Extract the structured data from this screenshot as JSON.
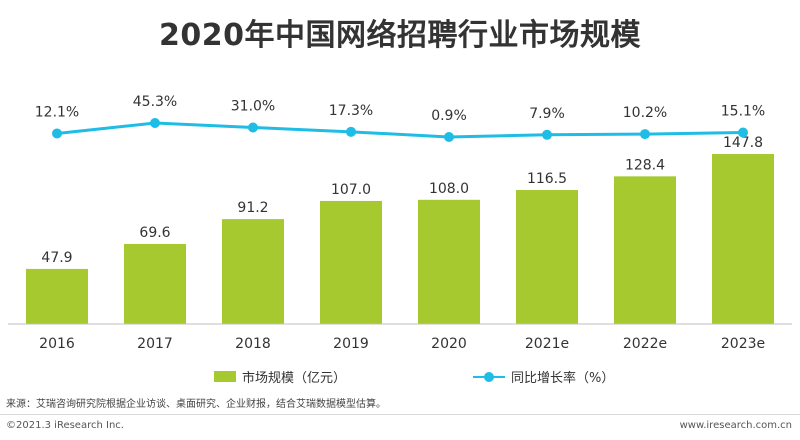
{
  "chart_data": {
    "type": "bar+line",
    "title": "2020年中国网络招聘行业市场规模",
    "categories": [
      "2016",
      "2017",
      "2018",
      "2019",
      "2020",
      "2021e",
      "2022e",
      "2023e"
    ],
    "series": [
      {
        "name": "市场规模（亿元）",
        "type": "bar",
        "color": "#a6c930",
        "values": [
          47.9,
          69.6,
          91.2,
          107.0,
          108.0,
          116.5,
          128.4,
          147.8
        ],
        "labels": [
          "47.9",
          "69.6",
          "91.2",
          "107.0",
          "108.0",
          "116.5",
          "128.4",
          "147.8"
        ]
      },
      {
        "name": "同比增长率（%）",
        "type": "line",
        "color": "#1fbde5",
        "values": [
          12.1,
          45.3,
          31.0,
          17.3,
          0.9,
          7.9,
          10.2,
          15.1
        ],
        "labels": [
          "12.1%",
          "45.3%",
          "31.0%",
          "17.3%",
          "0.9%",
          "7.9%",
          "10.2%",
          "15.1%"
        ]
      }
    ],
    "legend_position": "bottom",
    "grid": false
  },
  "footer": {
    "source": "来源：艾瑞咨询研究院根据企业访谈、桌面研究、企业财报，结合艾瑞数据模型估算。",
    "copyright": "©2021.3 iResearch Inc.",
    "site": "www.iresearch.com.cn"
  }
}
